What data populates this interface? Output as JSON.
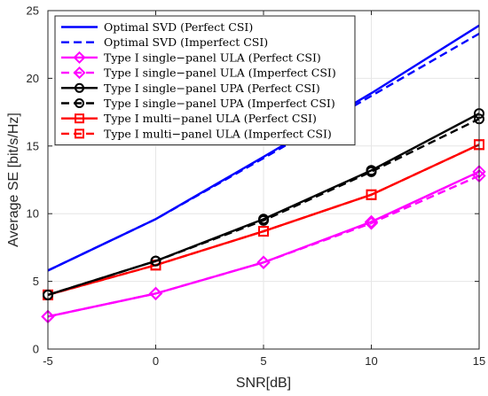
{
  "chart_data": {
    "type": "line",
    "xlabel": "SNR[dB]",
    "ylabel": "Average SE [bit/s/Hz]",
    "xlim": [
      -5,
      15
    ],
    "ylim": [
      0,
      25
    ],
    "xticks": [
      -5,
      0,
      5,
      10,
      15
    ],
    "yticks": [
      0,
      5,
      10,
      15,
      20,
      25
    ],
    "grid": true,
    "legend_position": "top-left",
    "x": [
      -5,
      0,
      5,
      10,
      15
    ],
    "series": [
      {
        "name": "Optimal SVD (Perfect CSI)",
        "values": [
          5.8,
          9.6,
          14.2,
          18.9,
          23.9
        ],
        "color": "#0000ff",
        "dash": "solid",
        "marker": "none"
      },
      {
        "name": "Optimal SVD (Imperfect CSI)",
        "values": [
          5.8,
          9.6,
          14.1,
          18.7,
          23.3
        ],
        "color": "#0000ff",
        "dash": "dashed",
        "marker": "none"
      },
      {
        "name": "Type I single−panel ULA (Perfect CSI)",
        "values": [
          2.4,
          4.1,
          6.4,
          9.4,
          13.1
        ],
        "color": "#ff00ff",
        "dash": "solid",
        "marker": "diamond"
      },
      {
        "name": "Type I single−panel ULA (Imperfect CSI)",
        "values": [
          2.4,
          4.1,
          6.4,
          9.3,
          12.8
        ],
        "color": "#ff00ff",
        "dash": "dashed",
        "marker": "diamond"
      },
      {
        "name": "Type I single−panel UPA (Perfect CSI)",
        "values": [
          4.0,
          6.5,
          9.6,
          13.2,
          17.4
        ],
        "color": "#000000",
        "dash": "solid",
        "marker": "circle"
      },
      {
        "name": "Type I single−panel UPA (Imperfect CSI)",
        "values": [
          4.0,
          6.5,
          9.5,
          13.1,
          17.0
        ],
        "color": "#000000",
        "dash": "dashed",
        "marker": "circle"
      },
      {
        "name": "Type I multi−panel ULA (Perfect CSI)",
        "values": [
          4.0,
          6.2,
          8.7,
          11.4,
          15.1
        ],
        "color": "#ff0000",
        "dash": "solid",
        "marker": "square"
      },
      {
        "name": "Type I multi−panel ULA (Imperfect CSI)",
        "values": [
          4.0,
          6.2,
          8.7,
          11.4,
          15.1
        ],
        "color": "#ff0000",
        "dash": "dashed",
        "marker": "square"
      }
    ]
  }
}
